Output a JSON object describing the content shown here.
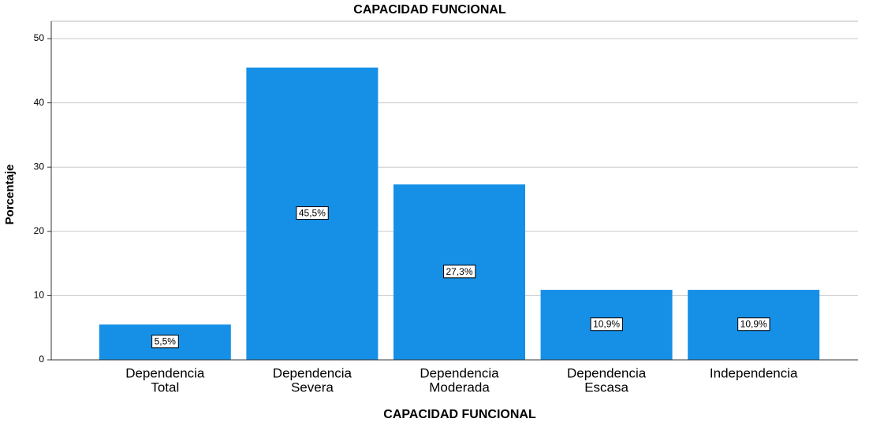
{
  "chart_data": {
    "type": "bar",
    "title": "CAPACIDAD FUNCIONAL",
    "x_label": "CAPACIDAD FUNCIONAL",
    "y_label": "Porcentaje",
    "categories": [
      [
        "Dependencia",
        "Total"
      ],
      [
        "Dependencia",
        "Severa"
      ],
      [
        "Dependencia",
        "Moderada"
      ],
      [
        "Dependencia",
        "Escasa"
      ],
      [
        "Independencia"
      ]
    ],
    "values": [
      5.5,
      45.5,
      27.3,
      10.9,
      10.9
    ],
    "value_labels": [
      "5,5%",
      "45,5%",
      "27,3%",
      "10,9%",
      "10,9%"
    ],
    "color": "#1590e6",
    "ylim": [
      0,
      52.7
    ],
    "yticks": [
      0,
      10,
      20,
      30,
      40,
      50
    ],
    "grid": true
  }
}
